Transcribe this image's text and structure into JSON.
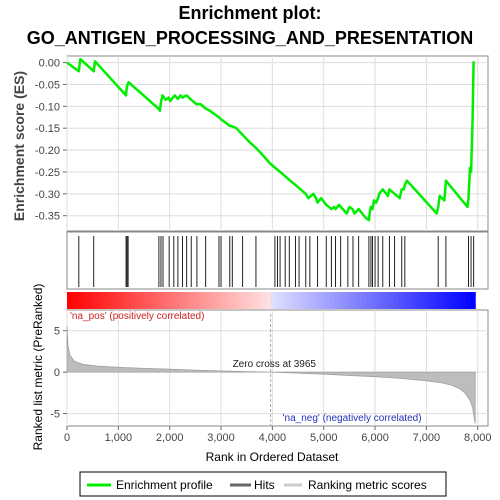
{
  "chart_data": {
    "type": "line",
    "title_line1": "Enrichment plot:",
    "title_line2": "GO_ANTIGEN_PROCESSING_AND_PRESENTATION",
    "es_panel": {
      "ylabel": "Enrichment score (ES)",
      "ylim": [
        -0.385,
        0.015
      ],
      "yticks": [
        "0.00",
        "-0.05",
        "-0.10",
        "-0.15",
        "-0.20",
        "-0.25",
        "-0.30",
        "-0.35"
      ],
      "ytick_values": [
        0.0,
        -0.05,
        -0.1,
        -0.15,
        -0.2,
        -0.25,
        -0.3,
        -0.35
      ],
      "series": [
        {
          "name": "Enrichment profile",
          "color": "#00ee00",
          "x": [
            0,
            230,
            260,
            520,
            545,
            1150,
            1160,
            1180,
            1200,
            1780,
            1810,
            1830,
            1860,
            1920,
            1980,
            2010,
            2060,
            2100,
            2160,
            2210,
            2250,
            2330,
            2420,
            2520,
            2600,
            2700,
            2780,
            2900,
            2960,
            3000,
            3120,
            3170,
            3200,
            3300,
            3420,
            3540,
            3680,
            3800,
            3950,
            4050,
            4150,
            4250,
            4350,
            4450,
            4550,
            4650,
            4700,
            4800,
            4850,
            4880,
            4950,
            5050,
            5150,
            5200,
            5230,
            5300,
            5330,
            5450,
            5500,
            5560,
            5600,
            5680,
            5750,
            5820,
            5880,
            5900,
            5920,
            5950,
            5980,
            6020,
            6060,
            6080,
            6150,
            6250,
            6280,
            6380,
            6480,
            6520,
            6560,
            6580,
            6620,
            6700,
            7200,
            7230,
            7260,
            7350,
            7380,
            7800,
            7820,
            7850,
            7870,
            7900,
            7920
          ],
          "y": [
            0.0,
            -0.02,
            0.008,
            -0.02,
            0.003,
            -0.075,
            -0.06,
            -0.05,
            -0.045,
            -0.105,
            -0.11,
            -0.09,
            -0.075,
            -0.085,
            -0.08,
            -0.088,
            -0.08,
            -0.075,
            -0.083,
            -0.075,
            -0.08,
            -0.075,
            -0.085,
            -0.095,
            -0.095,
            -0.105,
            -0.11,
            -0.12,
            -0.125,
            -0.13,
            -0.14,
            -0.145,
            -0.145,
            -0.15,
            -0.165,
            -0.18,
            -0.195,
            -0.21,
            -0.23,
            -0.24,
            -0.25,
            -0.26,
            -0.27,
            -0.28,
            -0.29,
            -0.3,
            -0.31,
            -0.3,
            -0.31,
            -0.32,
            -0.31,
            -0.325,
            -0.335,
            -0.33,
            -0.335,
            -0.325,
            -0.33,
            -0.345,
            -0.33,
            -0.335,
            -0.345,
            -0.335,
            -0.345,
            -0.355,
            -0.36,
            -0.34,
            -0.33,
            -0.335,
            -0.315,
            -0.32,
            -0.31,
            -0.3,
            -0.29,
            -0.305,
            -0.29,
            -0.3,
            -0.31,
            -0.29,
            -0.29,
            -0.28,
            -0.27,
            -0.28,
            -0.345,
            -0.33,
            -0.305,
            -0.315,
            -0.27,
            -0.33,
            -0.31,
            -0.24,
            -0.25,
            -0.13,
            0.003
          ]
        }
      ]
    },
    "hits": [
      230,
      520,
      1150,
      1170,
      1190,
      1790,
      1830,
      1870,
      1990,
      2080,
      2160,
      2250,
      2330,
      2420,
      2530,
      2700,
      2960,
      3000,
      3170,
      3220,
      3420,
      3680,
      4050,
      4100,
      4150,
      4250,
      4330,
      4450,
      4520,
      4650,
      4730,
      4880,
      5050,
      5150,
      5230,
      5330,
      5470,
      5570,
      5680,
      5880,
      5920,
      5950,
      6000,
      6060,
      6150,
      6280,
      6380,
      6520,
      6580,
      7230,
      7380,
      7820,
      7870,
      7920
    ],
    "xaxis": {
      "label": "Rank in Ordered Dataset",
      "xlim": [
        0,
        8200
      ],
      "ticks": [
        "0",
        "1,000",
        "2,000",
        "3,000",
        "4,000",
        "5,000",
        "6,000",
        "7,000",
        "8,000"
      ],
      "tick_values": [
        0,
        1000,
        2000,
        3000,
        4000,
        5000,
        6000,
        7000,
        8000
      ]
    },
    "metric_panel": {
      "ylabel": "Ranked list metric (PreRanked)",
      "ylim": [
        -6.5,
        7.5
      ],
      "yticks": [
        "5",
        "0",
        "-5"
      ],
      "ytick_values": [
        5,
        0,
        -5
      ],
      "zero_cross_label": "Zero cross at 3965",
      "zero_cross": 3965,
      "pos_label": "'na_pos' (positively correlated)",
      "neg_label": "'na_neg' (negatively correlated)",
      "n_total": 7950,
      "curve_x": [
        0,
        20,
        60,
        150,
        300,
        600,
        1000,
        1500,
        2000,
        2500,
        3000,
        3500,
        3965,
        4500,
        5000,
        5500,
        6000,
        6500,
        7000,
        7300,
        7500,
        7650,
        7750,
        7850,
        7900,
        7930,
        7950
      ],
      "curve_y": [
        5.5,
        3.2,
        2.0,
        1.3,
        0.95,
        0.72,
        0.58,
        0.45,
        0.35,
        0.25,
        0.15,
        0.06,
        0.0,
        -0.12,
        -0.25,
        -0.4,
        -0.55,
        -0.75,
        -1.05,
        -1.3,
        -1.6,
        -2.0,
        -2.5,
        -3.4,
        -4.3,
        -5.4,
        -6.2
      ]
    },
    "legend": [
      {
        "label": "Enrichment profile",
        "color": "#00ee00"
      },
      {
        "label": "Hits",
        "color": "#666666"
      },
      {
        "label": "Ranking metric scores",
        "color": "#cccccc"
      }
    ]
  }
}
